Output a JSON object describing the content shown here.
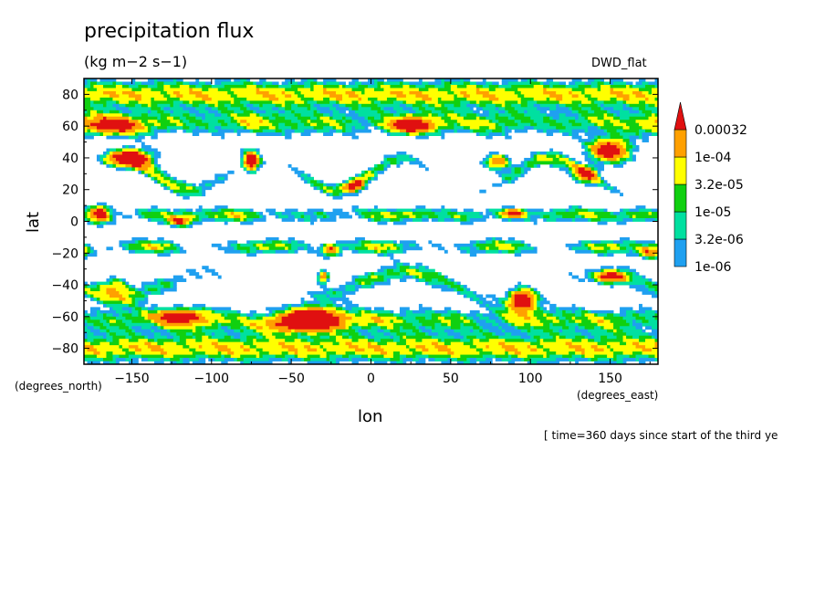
{
  "chart_data": {
    "type": "heatmap",
    "title": "precipitation flux",
    "units": "(kg m−2 s−1)",
    "run_label": "DWD_flat",
    "xlabel": "lon",
    "ylabel": "lat",
    "x_units": "(degrees_east)",
    "y_units": "(degrees_north)",
    "time_note": "[ time=360 days since start of the third ye",
    "xlim": [
      -180,
      180
    ],
    "ylim": [
      -90,
      90
    ],
    "x_ticks": [
      -150,
      -100,
      -50,
      0,
      50,
      100,
      150
    ],
    "y_ticks": [
      80,
      60,
      40,
      20,
      0,
      -20,
      -40,
      -60,
      -80
    ],
    "colorbar": {
      "levels": [
        "1e-06",
        "3.2e-06",
        "1e-05",
        "3.2e-05",
        "1e-04",
        "0.00032"
      ],
      "colors": [
        "#1fa0f0",
        "#00e0a0",
        "#10d010",
        "#ffff00",
        "#ffa000",
        "#e01010"
      ]
    }
  }
}
